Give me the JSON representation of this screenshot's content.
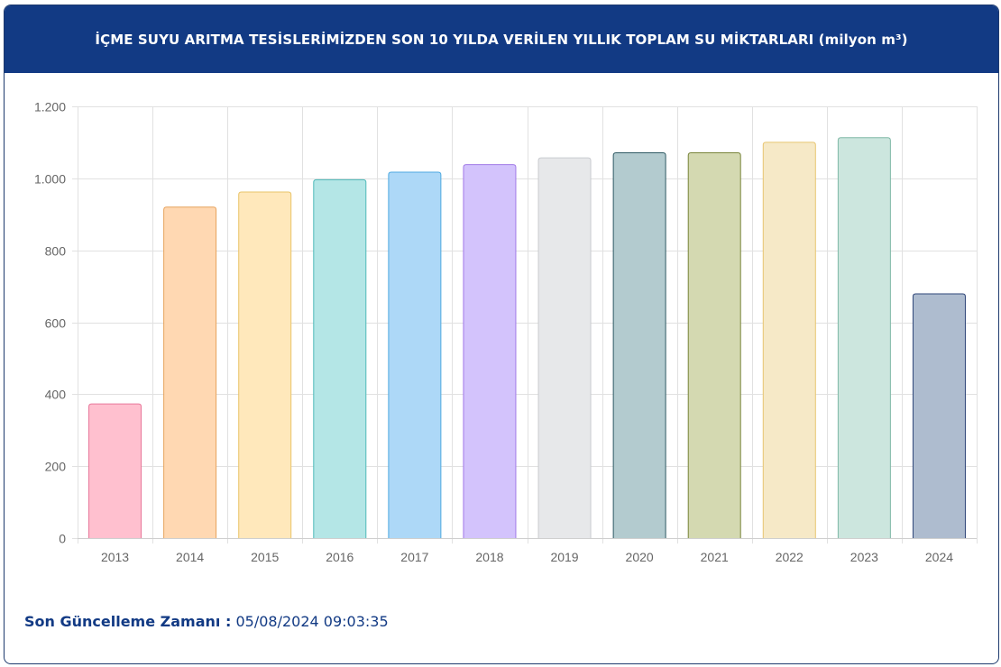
{
  "header": {
    "title": "İÇME SUYU ARITMA TESİSLERİMİZDEN SON 10 YILDA VERİLEN YILLIK TOPLAM SU MİKTARLARI (milyon m³)"
  },
  "footer": {
    "label": "Son Güncelleme Zamanı :",
    "value": "05/08/2024 09:03:35"
  },
  "chart_data": {
    "type": "bar",
    "title": "",
    "xlabel": "",
    "ylabel": "",
    "categories": [
      "2013",
      "2014",
      "2015",
      "2016",
      "2017",
      "2018",
      "2019",
      "2020",
      "2021",
      "2022",
      "2023",
      "2024"
    ],
    "values": [
      373,
      920,
      962,
      996,
      1017,
      1038,
      1057,
      1071,
      1071,
      1100,
      1113,
      679
    ],
    "ylim": [
      0,
      1200
    ],
    "yticks": [
      0,
      200,
      400,
      600,
      800,
      1000,
      1200
    ],
    "ytick_labels": [
      "0",
      "200",
      "400",
      "600",
      "800",
      "1.000",
      "1.200"
    ],
    "grid": true,
    "legend": "none",
    "bar_fill_colors": [
      "#ffc0cf",
      "#ffd8b2",
      "#ffe8bb",
      "#b4e6e6",
      "#add8f7",
      "#d3c3fc",
      "#e7e8ea",
      "#b3cbcf",
      "#d4d9b1",
      "#f6e9c7",
      "#cce6de",
      "#aebccf"
    ],
    "bar_border_colors": [
      "#e8779a",
      "#e6a25c",
      "#e9c46a",
      "#4fb9b9",
      "#4ea9e0",
      "#a07ae6",
      "#c9cbcf",
      "#2f5a64",
      "#78843a",
      "#e8c571",
      "#7fb8a6",
      "#2f4678"
    ]
  }
}
